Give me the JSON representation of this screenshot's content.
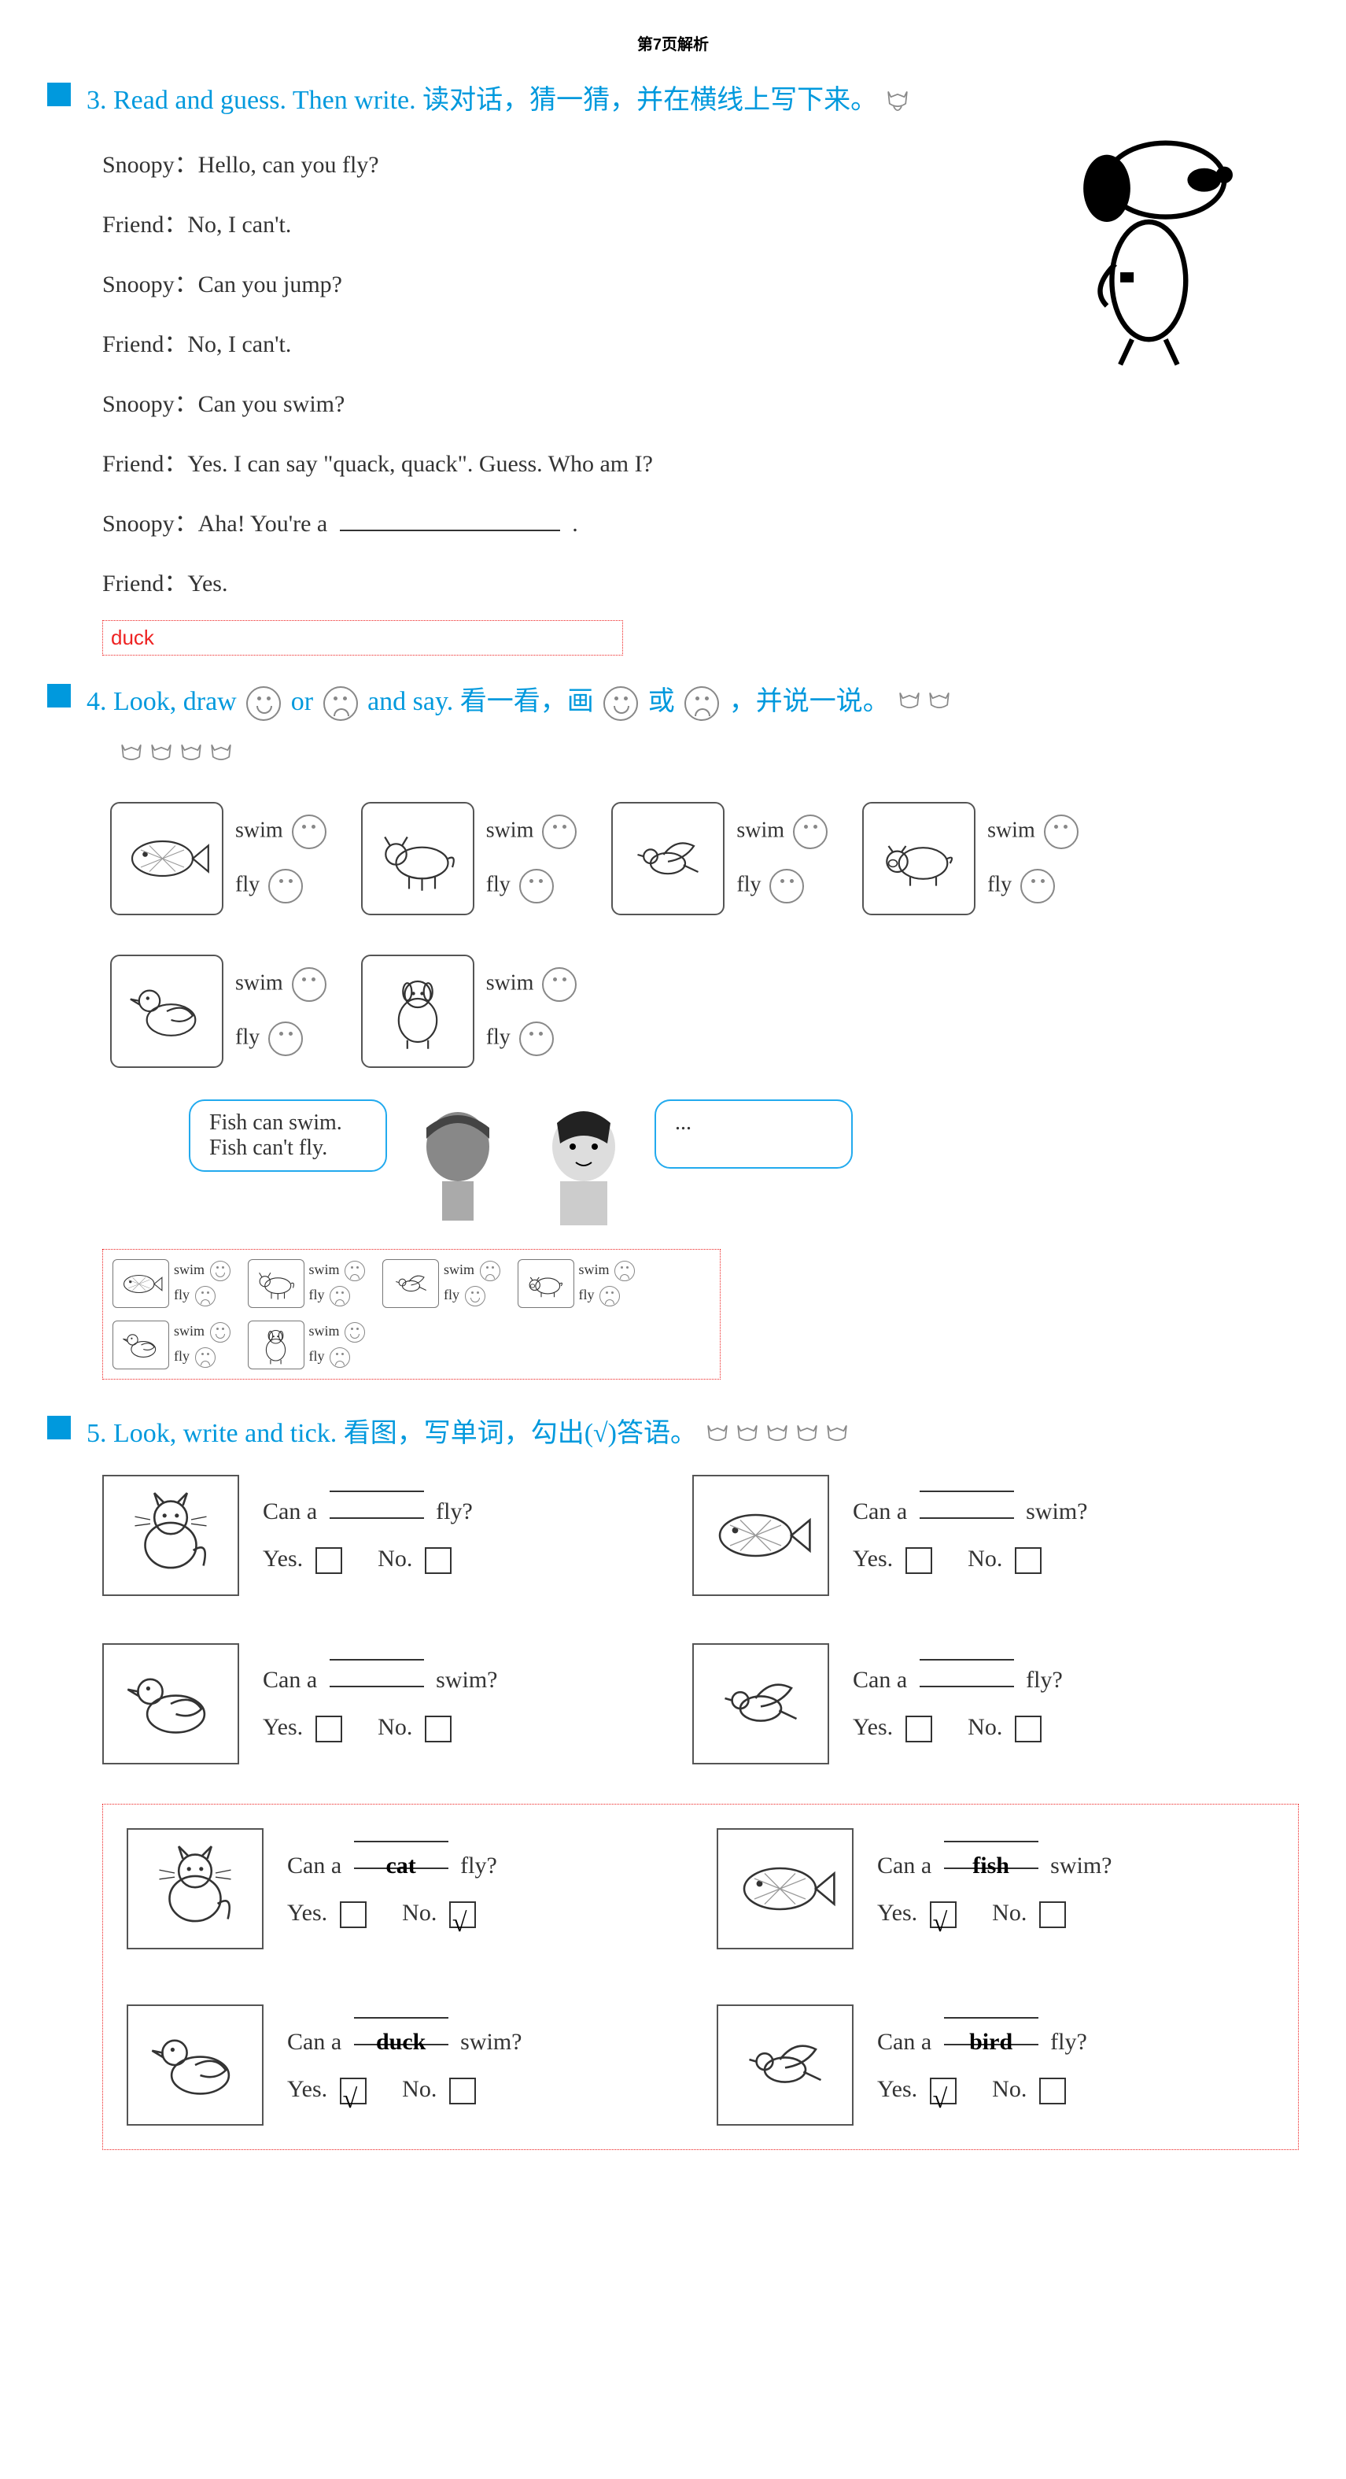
{
  "header": "第7页解析",
  "section3": {
    "title_en": "3. Read and guess. Then write.",
    "title_zh": "读对话，猜一猜，并在横线上写下来。",
    "dialogue": [
      "Snoopy：Hello, can you fly?",
      "Friend：No, I can't.",
      "Snoopy：Can you jump?",
      "Friend：No, I can't.",
      "Snoopy：Can you swim?",
      "Friend：Yes. I can say \"quack, quack\". Guess. Who am I?",
      "Snoopy：Aha! You're a",
      "Friend：Yes."
    ],
    "blank_suffix": ".",
    "answer": "duck"
  },
  "section4": {
    "title_en": "4. Look, draw",
    "title_mid": "or",
    "title_en2": "and say.",
    "title_zh": "看一看，画",
    "title_zh_mid": "或",
    "title_zh2": "，并说一说。",
    "word_swim": "swim",
    "word_fly": "fly",
    "animals": [
      "fish",
      "cow",
      "bird",
      "pig",
      "duck",
      "dog"
    ],
    "speech1_line1": "Fish can swim.",
    "speech1_line2": "Fish can't fly.",
    "speech2": "...",
    "answers": [
      {
        "animal": "fish",
        "swim": "smile",
        "fly": "sad"
      },
      {
        "animal": "cow",
        "swim": "sad",
        "fly": "sad"
      },
      {
        "animal": "bird",
        "swim": "sad",
        "fly": "smile"
      },
      {
        "animal": "pig",
        "swim": "sad",
        "fly": "sad"
      },
      {
        "animal": "duck",
        "swim": "smile",
        "fly": "sad"
      },
      {
        "animal": "dog",
        "swim": "smile",
        "fly": "sad"
      }
    ]
  },
  "section5": {
    "title_en": "5. Look, write and tick.",
    "title_zh": "看图，写单词，勾出(√)答语。",
    "can_a": "Can a",
    "yes": "Yes.",
    "no": "No.",
    "blank_questions": [
      {
        "animal": "cat",
        "verb": "fly?"
      },
      {
        "animal": "fish",
        "verb": "swim?"
      },
      {
        "animal": "duck",
        "verb": "swim?"
      },
      {
        "animal": "bird",
        "verb": "fly?"
      }
    ],
    "answered_questions": [
      {
        "animal": "cat",
        "word": "cat",
        "verb": "fly?",
        "yes": false,
        "no": true
      },
      {
        "animal": "fish",
        "word": "fish",
        "verb": "swim?",
        "yes": true,
        "no": false
      },
      {
        "animal": "duck",
        "word": "duck",
        "verb": "swim?",
        "yes": true,
        "no": false
      },
      {
        "animal": "bird",
        "word": "bird",
        "verb": "fly?",
        "yes": true,
        "no": false
      }
    ]
  },
  "colors": {
    "accent": "#0099dd",
    "answer_red": "#ee2222",
    "text": "#333333",
    "bubble_border": "#22aaee"
  }
}
